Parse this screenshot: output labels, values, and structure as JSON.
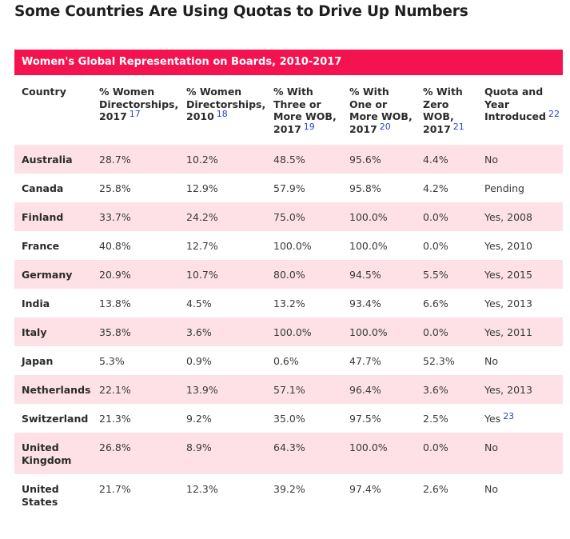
{
  "title": "Some Countries Are Using Quotas to Drive Up Numbers",
  "table": {
    "caption": "Women's Global Representation on Boards, 2010-2017",
    "headers": [
      {
        "label": "Country",
        "ref": ""
      },
      {
        "label": "% Women Directorships, 2017",
        "ref": "17"
      },
      {
        "label": "% Women Directorships, 2010",
        "ref": "18"
      },
      {
        "label": "% With Three or More WOB, 2017",
        "ref": "19"
      },
      {
        "label": "% With One or More WOB, 2017",
        "ref": "20"
      },
      {
        "label": "% With Zero WOB, 2017",
        "ref": "21"
      },
      {
        "label": "Quota and Year Introduced",
        "ref": "22"
      }
    ],
    "rows": [
      {
        "country": "Australia",
        "women_2017": "28.7%",
        "women_2010": "10.2%",
        "three_plus": "48.5%",
        "one_plus": "95.6%",
        "zero": "4.4%",
        "quota": "No",
        "quota_ref": ""
      },
      {
        "country": "Canada",
        "women_2017": "25.8%",
        "women_2010": "12.9%",
        "three_plus": "57.9%",
        "one_plus": "95.8%",
        "zero": "4.2%",
        "quota": "Pending",
        "quota_ref": ""
      },
      {
        "country": "Finland",
        "women_2017": "33.7%",
        "women_2010": "24.2%",
        "three_plus": "75.0%",
        "one_plus": "100.0%",
        "zero": "0.0%",
        "quota": "Yes, 2008",
        "quota_ref": ""
      },
      {
        "country": "France",
        "women_2017": "40.8%",
        "women_2010": "12.7%",
        "three_plus": "100.0%",
        "one_plus": "100.0%",
        "zero": "0.0%",
        "quota": "Yes, 2010",
        "quota_ref": ""
      },
      {
        "country": "Germany",
        "women_2017": "20.9%",
        "women_2010": "10.7%",
        "three_plus": "80.0%",
        "one_plus": "94.5%",
        "zero": "5.5%",
        "quota": "Yes, 2015",
        "quota_ref": ""
      },
      {
        "country": "India",
        "women_2017": "13.8%",
        "women_2010": "4.5%",
        "three_plus": "13.2%",
        "one_plus": "93.4%",
        "zero": "6.6%",
        "quota": "Yes, 2013",
        "quota_ref": ""
      },
      {
        "country": "Italy",
        "women_2017": "35.8%",
        "women_2010": "3.6%",
        "three_plus": "100.0%",
        "one_plus": "100.0%",
        "zero": "0.0%",
        "quota": "Yes, 2011",
        "quota_ref": ""
      },
      {
        "country": "Japan",
        "women_2017": "5.3%",
        "women_2010": "0.9%",
        "three_plus": "0.6%",
        "one_plus": "47.7%",
        "zero": "52.3%",
        "quota": "No",
        "quota_ref": ""
      },
      {
        "country": "Netherlands",
        "women_2017": "22.1%",
        "women_2010": "13.9%",
        "three_plus": "57.1%",
        "one_plus": "96.4%",
        "zero": "3.6%",
        "quota": "Yes, 2013",
        "quota_ref": ""
      },
      {
        "country": "Switzerland",
        "women_2017": "21.3%",
        "women_2010": "9.2%",
        "three_plus": "35.0%",
        "one_plus": "97.5%",
        "zero": "2.5%",
        "quota": "Yes",
        "quota_ref": "23"
      },
      {
        "country": "United Kingdom",
        "women_2017": "26.8%",
        "women_2010": "8.9%",
        "three_plus": "64.3%",
        "one_plus": "100.0%",
        "zero": "0.0%",
        "quota": "No",
        "quota_ref": ""
      },
      {
        "country": "United States",
        "women_2017": "21.7%",
        "women_2010": "12.3%",
        "three_plus": "39.2%",
        "one_plus": "97.4%",
        "zero": "2.6%",
        "quota": "No",
        "quota_ref": ""
      }
    ]
  },
  "colors": {
    "caption_bg": "#f5134f",
    "stripe_bg": "#fde1e6",
    "footnote_link": "#2a3fd0"
  }
}
